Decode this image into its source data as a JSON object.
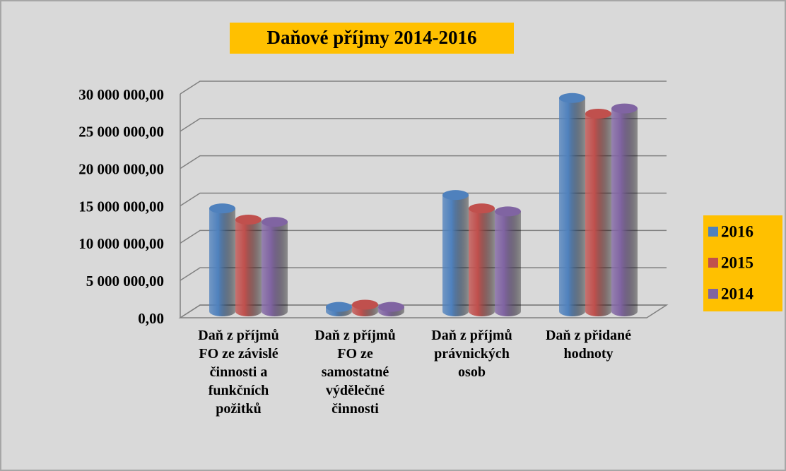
{
  "chart_data": {
    "type": "bar3d",
    "title": "Daňové příjmy 2014-2016",
    "categories": [
      "Daň z příjmů FO ze závislé činnosti a funkčních požitků",
      "Daň z příjmů FO ze samostatné výdělečné činnosti",
      "Daň z příjmů právnických osob",
      "Daň z přidané hodnoty"
    ],
    "series": [
      {
        "name": "2016",
        "color": "#4f81bd",
        "values": [
          13800000,
          600000,
          15600000,
          28600000
        ]
      },
      {
        "name": "2015",
        "color": "#c0504d",
        "values": [
          12300000,
          900000,
          13800000,
          26500000
        ]
      },
      {
        "name": "2014",
        "color": "#8064a2",
        "values": [
          12000000,
          600000,
          13400000,
          27200000
        ]
      }
    ],
    "ylim": [
      0,
      30000000
    ],
    "yticks": [
      {
        "value": 0,
        "label": "0,00"
      },
      {
        "value": 5000000,
        "label": "5 000 000,00"
      },
      {
        "value": 10000000,
        "label": "10 000 000,00"
      },
      {
        "value": 15000000,
        "label": "15 000 000,00"
      },
      {
        "value": 20000000,
        "label": "20 000 000,00"
      },
      {
        "value": 25000000,
        "label": "25 000 000,00"
      },
      {
        "value": 30000000,
        "label": "30 000 000,00"
      }
    ],
    "grid": true,
    "legend": "right"
  }
}
